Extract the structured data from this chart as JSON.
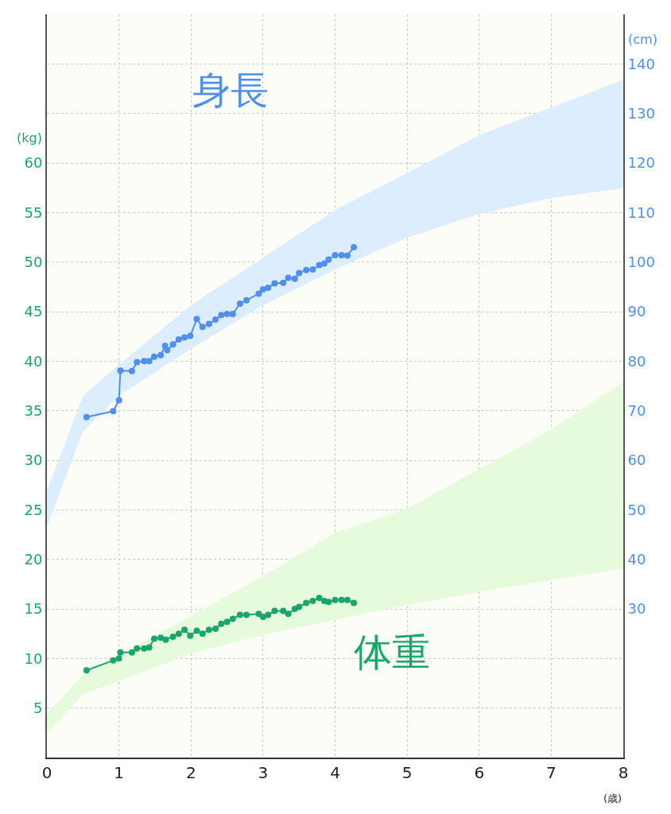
{
  "chart_data": {
    "type": "line",
    "xlabel": "(歳)",
    "ylabel": "(kg)",
    "y2label": "(cm)",
    "xlim": [
      0,
      8
    ],
    "xticks": [
      0,
      1,
      2,
      3,
      4,
      5,
      6,
      7,
      8
    ],
    "ylim": [
      0,
      75
    ],
    "yticks": [
      5,
      10,
      15,
      20,
      25,
      30,
      35,
      40,
      45,
      50,
      55,
      60,
      {
        "value": 65,
        "label": null
      },
      {
        "value": 70,
        "label": null
      },
      {
        "value": 75,
        "label": null
      }
    ],
    "y2lim": [
      0,
      150
    ],
    "y2ticks": [
      30,
      40,
      50,
      60,
      70,
      80,
      90,
      100,
      110,
      120,
      130,
      140
    ],
    "grid": true,
    "legend": false,
    "marker": "circle",
    "line_style": "solid",
    "series": [
      {
        "type": "area",
        "axis": "y2",
        "marker": "none",
        "color": "#dceefd",
        "x": [
          0,
          0.5,
          1,
          2,
          3,
          4,
          5,
          6,
          7,
          8
        ],
        "values": [
          null,
          null,
          null,
          null,
          null,
          null,
          null,
          null,
          null,
          null
        ],
        "lower": [
          46.6,
          65.8,
          73.0,
          82.5,
          91.3,
          98.5,
          104.9,
          109.7,
          112.9,
          114.9
        ],
        "upper": [
          53.8,
          73.0,
          79.3,
          91.3,
          100.9,
          110.5,
          118.0,
          125.6,
          131.2,
          136.8
        ]
      },
      {
        "type": "area",
        "axis": "y",
        "marker": "none",
        "color": "#e6fadc",
        "x": [
          0,
          0.5,
          1,
          2,
          3,
          4,
          5,
          6,
          7,
          8
        ],
        "values": [
          null,
          null,
          null,
          null,
          null,
          null,
          null,
          null,
          null,
          null
        ],
        "lower": [
          2.4,
          6.4,
          7.7,
          10.5,
          12.4,
          13.9,
          15.4,
          16.7,
          17.9,
          19.1
        ],
        "upper": [
          4.4,
          8.4,
          10.4,
          14.3,
          18.3,
          22.7,
          25.1,
          29.1,
          33.1,
          37.9
        ]
      },
      {
        "name": "身長",
        "axis": "y2",
        "color": "#4f8ff0",
        "x": [
          0.55,
          0.92,
          1.0,
          1.02,
          1.18,
          1.25,
          1.35,
          1.42,
          1.49,
          1.58,
          1.64,
          1.67,
          1.75,
          1.83,
          1.91,
          1.99,
          2.08,
          2.16,
          2.25,
          2.34,
          2.42,
          2.5,
          2.58,
          2.68,
          2.77,
          2.94,
          3.0,
          3.07,
          3.16,
          3.28,
          3.35,
          3.44,
          3.5,
          3.6,
          3.69,
          3.78,
          3.85,
          3.91,
          4.0,
          4.09,
          4.17,
          4.26
        ],
        "values": [
          68.7,
          69.9,
          72.1,
          78.1,
          78.0,
          79.8,
          80.0,
          80.0,
          80.9,
          81.2,
          83.1,
          82.2,
          83.4,
          84.4,
          84.8,
          85.1,
          88.5,
          86.9,
          87.5,
          88.4,
          89.3,
          89.5,
          89.5,
          91.6,
          92.3,
          93.6,
          94.5,
          94.8,
          95.7,
          95.8,
          96.8,
          96.6,
          97.8,
          98.4,
          98.5,
          99.4,
          99.7,
          100.5,
          101.4,
          101.4,
          101.3,
          103.0
        ]
      },
      {
        "name": "体重",
        "axis": "y",
        "color": "#1aa56a",
        "x": [
          0.55,
          0.92,
          1.0,
          1.02,
          1.18,
          1.25,
          1.35,
          1.42,
          1.49,
          1.58,
          1.65,
          1.75,
          1.83,
          1.91,
          1.99,
          2.08,
          2.16,
          2.25,
          2.34,
          2.42,
          2.5,
          2.58,
          2.68,
          2.77,
          2.94,
          3.0,
          3.07,
          3.16,
          3.28,
          3.35,
          3.44,
          3.5,
          3.6,
          3.69,
          3.78,
          3.85,
          3.91,
          4.0,
          4.09,
          4.17,
          4.26
        ],
        "values": [
          8.8,
          9.8,
          10.0,
          10.6,
          10.6,
          11.0,
          11.0,
          11.1,
          12.0,
          12.1,
          11.9,
          12.2,
          12.5,
          12.9,
          12.3,
          12.8,
          12.5,
          12.9,
          13.0,
          13.5,
          13.7,
          14.0,
          14.4,
          14.4,
          14.5,
          14.2,
          14.4,
          14.8,
          14.8,
          14.5,
          15.0,
          15.2,
          15.6,
          15.8,
          16.1,
          15.8,
          15.7,
          15.9,
          15.9,
          15.9,
          15.6
        ]
      }
    ]
  }
}
